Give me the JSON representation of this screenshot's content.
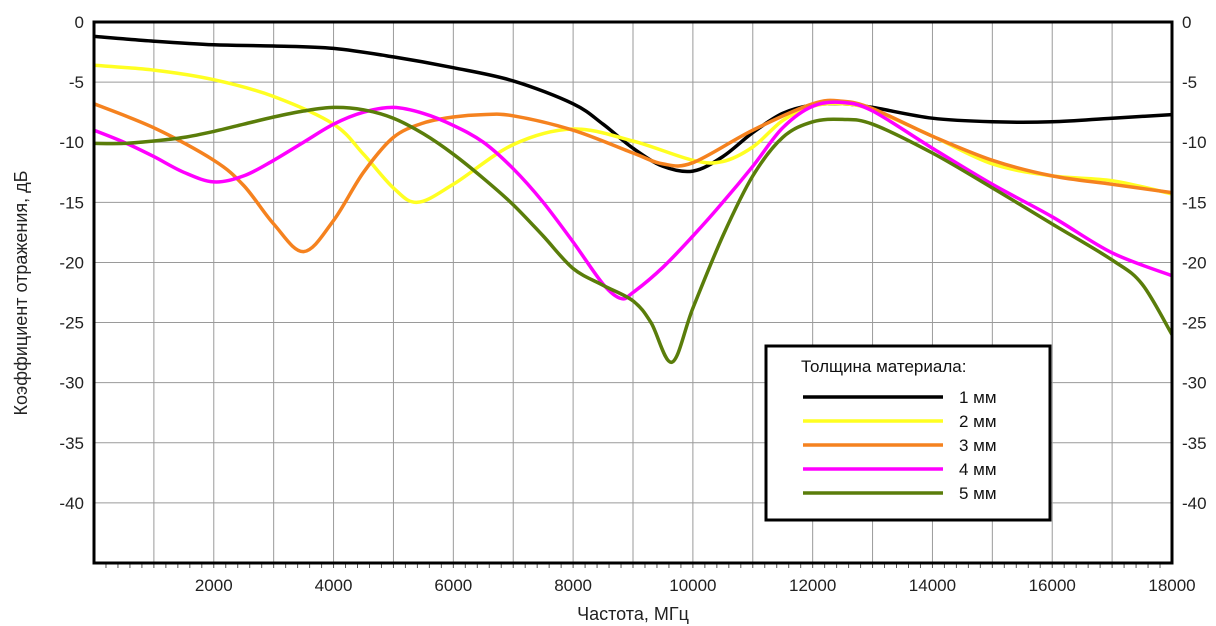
{
  "chart_data": {
    "type": "line",
    "title": "",
    "xlabel": "Частота, МГц",
    "ylabel": "Коэффициент отражения, дБ",
    "xlim": [
      0,
      18000
    ],
    "ylim": [
      -45,
      0
    ],
    "x_ticks": [
      2000,
      4000,
      6000,
      8000,
      10000,
      12000,
      14000,
      16000,
      18000
    ],
    "x_tick_labels": [
      "2000",
      "4000",
      "6000",
      "8000",
      "10000",
      "12000",
      "14000",
      "16000",
      "18000"
    ],
    "y_ticks": [
      0,
      -5,
      -10,
      -15,
      -20,
      -25,
      -30,
      -35,
      -40
    ],
    "y_tick_labels": [
      "0",
      "-5",
      "-10",
      "-15",
      "-20",
      "-25",
      "-30",
      "-35",
      "-40"
    ],
    "grid": true,
    "legend_title": "Толщина материала:",
    "legend_position": "bottom-right",
    "series": [
      {
        "name": "1 мм",
        "color": "#000000",
        "x": [
          0,
          1000,
          2000,
          3000,
          4000,
          5000,
          6000,
          7000,
          8000,
          8500,
          9000,
          9500,
          10000,
          10500,
          11000,
          11500,
          12000,
          12500,
          13000,
          14000,
          15000,
          16000,
          17000,
          18000
        ],
        "y": [
          -1.2,
          -1.6,
          -1.9,
          -2.0,
          -2.2,
          -2.9,
          -3.8,
          -4.9,
          -6.8,
          -8.5,
          -10.5,
          -12.0,
          -12.4,
          -11.2,
          -9.2,
          -7.6,
          -6.9,
          -6.8,
          -7.1,
          -8.0,
          -8.3,
          -8.3,
          -8.0,
          -7.7
        ]
      },
      {
        "name": "2 мм",
        "color": "#ffff22",
        "x": [
          0,
          1000,
          2000,
          3000,
          4000,
          4500,
          5000,
          5400,
          6000,
          7000,
          8000,
          9000,
          10000,
          10500,
          11000,
          11500,
          12000,
          12500,
          13000,
          14000,
          15000,
          16000,
          17000,
          18000
        ],
        "y": [
          -3.6,
          -4.0,
          -4.8,
          -6.2,
          -8.5,
          -11.0,
          -13.8,
          -15.0,
          -13.5,
          -10.2,
          -8.9,
          -9.9,
          -11.5,
          -11.6,
          -10.4,
          -8.2,
          -7.0,
          -6.8,
          -7.3,
          -9.5,
          -11.8,
          -12.8,
          -13.2,
          -14.3
        ]
      },
      {
        "name": "3 мм",
        "color": "#f5821f",
        "x": [
          0,
          1000,
          2000,
          2500,
          3000,
          3500,
          4000,
          4500,
          5000,
          5500,
          6000,
          6500,
          7000,
          8000,
          9000,
          9500,
          10000,
          11000,
          12000,
          12500,
          13000,
          14000,
          15000,
          16000,
          17000,
          18000
        ],
        "y": [
          -6.8,
          -8.8,
          -11.5,
          -13.6,
          -16.8,
          -19.1,
          -16.5,
          -12.5,
          -9.6,
          -8.4,
          -7.9,
          -7.7,
          -7.8,
          -9.0,
          -10.9,
          -11.8,
          -11.7,
          -9.0,
          -6.8,
          -6.6,
          -7.2,
          -9.5,
          -11.5,
          -12.8,
          -13.5,
          -14.2
        ]
      },
      {
        "name": "4 мм",
        "color": "#ff00ff",
        "x": [
          0,
          500,
          1000,
          1500,
          2000,
          2500,
          3000,
          3500,
          4000,
          4500,
          5000,
          5500,
          6000,
          6500,
          7000,
          7500,
          8000,
          8500,
          8800,
          9000,
          9500,
          10000,
          10500,
          11000,
          11500,
          12000,
          12500,
          13000,
          14000,
          15000,
          16000,
          17000,
          18000
        ],
        "y": [
          -9.0,
          -10.0,
          -11.2,
          -12.5,
          -13.3,
          -12.8,
          -11.5,
          -10.0,
          -8.5,
          -7.5,
          -7.1,
          -7.6,
          -8.6,
          -10.0,
          -12.2,
          -15.0,
          -18.3,
          -21.8,
          -23.0,
          -22.5,
          -20.4,
          -17.8,
          -15.0,
          -12.0,
          -8.8,
          -7.0,
          -6.7,
          -7.4,
          -10.5,
          -13.5,
          -16.2,
          -19.2,
          -21.1
        ]
      },
      {
        "name": "5 мм",
        "color": "#5a7d0a",
        "x": [
          0,
          500,
          1000,
          1500,
          2000,
          2500,
          3000,
          3500,
          4000,
          4500,
          5000,
          5500,
          6000,
          6500,
          7000,
          7500,
          8000,
          8500,
          9000,
          9300,
          9650,
          10000,
          10500,
          11000,
          11500,
          12000,
          12500,
          13000,
          14000,
          15000,
          16000,
          17000,
          17500,
          18000
        ],
        "y": [
          -10.1,
          -10.1,
          -9.9,
          -9.6,
          -9.1,
          -8.5,
          -7.9,
          -7.4,
          -7.1,
          -7.3,
          -8.0,
          -9.3,
          -11.0,
          -13.0,
          -15.2,
          -17.8,
          -20.5,
          -21.9,
          -23.2,
          -25.0,
          -28.3,
          -23.8,
          -17.8,
          -12.8,
          -9.6,
          -8.3,
          -8.1,
          -8.5,
          -10.9,
          -13.8,
          -16.8,
          -19.8,
          -21.8,
          -26.0
        ]
      }
    ]
  }
}
